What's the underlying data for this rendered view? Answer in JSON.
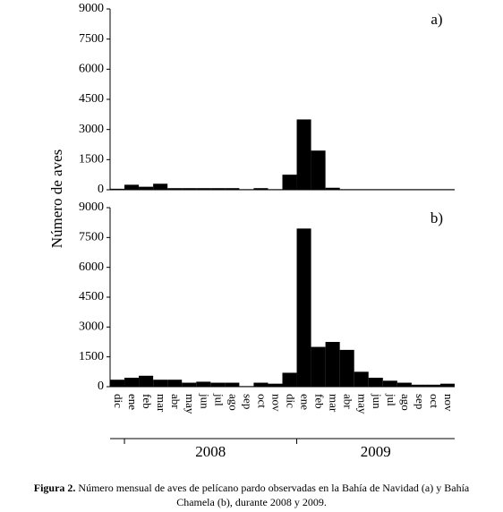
{
  "y_label": "Número de aves",
  "years": [
    "2008",
    "2009"
  ],
  "caption": {
    "label": "Figura 2.",
    "lines": [
      "Número mensual de aves de pelícano pardo observadas en la Bahía de Navidad (a) y Bahía",
      "Chamela (b), durante 2008 y 2009."
    ]
  },
  "chart_data": [
    {
      "type": "bar",
      "title": "a)",
      "color": "#000000",
      "values": [
        50,
        250,
        150,
        300,
        80,
        80,
        80,
        80,
        80,
        30,
        80,
        30,
        750,
        3500,
        1950,
        100,
        30,
        30,
        30,
        30,
        30,
        30,
        30,
        30
      ],
      "ylim": [
        0,
        9000
      ],
      "yticks": [
        0,
        1500,
        3000,
        4500,
        6000,
        7500,
        9000
      ]
    },
    {
      "type": "bar",
      "title": "b)",
      "color": "#000000",
      "categories": [
        "dic",
        "ene",
        "feb",
        "mar",
        "abr",
        "may",
        "jun",
        "jul",
        "ago",
        "sep",
        "oct",
        "nov",
        "dic",
        "ene",
        "feb",
        "mar",
        "abr",
        "may",
        "jun",
        "jul",
        "ago",
        "sep",
        "oct",
        "nov"
      ],
      "values": [
        350,
        450,
        550,
        350,
        350,
        200,
        250,
        200,
        200,
        30,
        200,
        150,
        700,
        7950,
        2000,
        2250,
        1850,
        750,
        450,
        300,
        200,
        100,
        100,
        150
      ],
      "ylim": [
        0,
        9000
      ],
      "yticks": [
        0,
        1500,
        3000,
        4500,
        6000,
        7500,
        9000
      ]
    }
  ]
}
